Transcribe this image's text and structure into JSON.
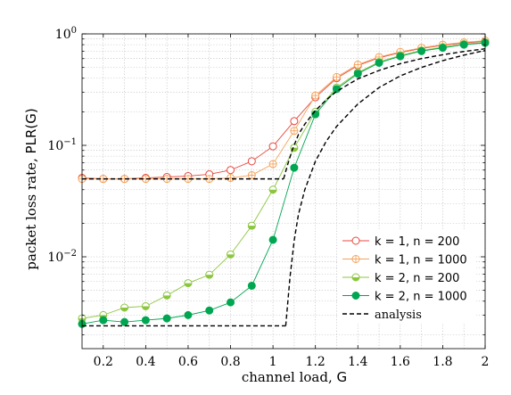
{
  "chart_data": {
    "type": "line",
    "title": "",
    "xlabel_text": "channel load,",
    "xlabel_symbol": "G",
    "ylabel_text": "packet loss rate,",
    "ylabel_symbol": "PLR(G)",
    "xlim": [
      0.1,
      2.0
    ],
    "ylim": [
      0.0015,
      1.0
    ],
    "yscale": "log",
    "grid": true,
    "legend_position": "lower-right",
    "x_ticks": [
      0.2,
      0.4,
      0.6,
      0.8,
      1.0,
      1.2,
      1.4,
      1.6,
      1.8,
      2.0
    ],
    "x_tick_labels": [
      "0.2",
      "0.4",
      "0.6",
      "0.8",
      "1",
      "1.2",
      "1.4",
      "1.6",
      "1.8",
      "2"
    ],
    "y_ticks": [
      {
        "value": 0.01,
        "base": "10",
        "exp": "−2"
      },
      {
        "value": 0.1,
        "base": "10",
        "exp": "−1"
      },
      {
        "value": 1.0,
        "base": "10",
        "exp": "0"
      }
    ],
    "x": [
      0.1,
      0.2,
      0.3,
      0.4,
      0.5,
      0.6,
      0.7,
      0.8,
      0.9,
      1.0,
      1.1,
      1.2,
      1.3,
      1.4,
      1.5,
      1.6,
      1.7,
      1.8,
      1.9,
      2.0
    ],
    "series": [
      {
        "name": "k = 1, n = 200",
        "color": "#e8473d",
        "marker": "circle-open",
        "values": [
          0.051,
          0.05,
          0.05,
          0.051,
          0.052,
          0.053,
          0.055,
          0.06,
          0.072,
          0.098,
          0.165,
          0.27,
          0.4,
          0.52,
          0.61,
          0.68,
          0.74,
          0.79,
          0.83,
          0.86
        ]
      },
      {
        "name": "k = 1, n = 1000",
        "color": "#f5a35c",
        "marker": "circle-plus",
        "values": [
          0.05,
          0.05,
          0.05,
          0.05,
          0.05,
          0.05,
          0.05,
          0.051,
          0.054,
          0.068,
          0.135,
          0.28,
          0.41,
          0.53,
          0.62,
          0.69,
          0.75,
          0.8,
          0.84,
          0.87
        ]
      },
      {
        "name": "k = 2, n = 200",
        "color": "#8cc63f",
        "marker": "circle-half",
        "values": [
          0.0028,
          0.003,
          0.0035,
          0.0036,
          0.0045,
          0.0058,
          0.0069,
          0.0105,
          0.019,
          0.04,
          0.095,
          0.2,
          0.33,
          0.45,
          0.56,
          0.64,
          0.71,
          0.76,
          0.81,
          0.84
        ]
      },
      {
        "name": "k = 2, n = 1000",
        "color": "#00a651",
        "marker": "circle-filled",
        "values": [
          0.0025,
          0.0027,
          0.0026,
          0.0027,
          0.0028,
          0.003,
          0.0033,
          0.0039,
          0.0055,
          0.0142,
          0.063,
          0.19,
          0.32,
          0.44,
          0.55,
          0.63,
          0.7,
          0.75,
          0.8,
          0.83
        ]
      },
      {
        "name": "analysis",
        "color": "#000000",
        "marker": "none",
        "dashed": true,
        "segments": [
          {
            "x": [
              0.1,
              1.05
            ],
            "values": [
              0.05,
              0.05
            ]
          },
          {
            "x": [
              1.05,
              1.07,
              1.09,
              1.12,
              1.15,
              1.2,
              1.25,
              1.3,
              1.4,
              1.5,
              1.6,
              1.7,
              1.8,
              1.9,
              2.0
            ],
            "values": [
              0.05,
              0.068,
              0.09,
              0.125,
              0.155,
              0.205,
              0.255,
              0.305,
              0.395,
              0.47,
              0.54,
              0.6,
              0.65,
              0.695,
              0.735
            ]
          },
          {
            "x": [
              0.1,
              1.06
            ],
            "values": [
              0.0024,
              0.0024
            ]
          },
          {
            "x": [
              1.06,
              1.08,
              1.1,
              1.12,
              1.15,
              1.2,
              1.25,
              1.3,
              1.4,
              1.5,
              1.6,
              1.7,
              1.8,
              1.9,
              2.0
            ],
            "values": [
              0.0024,
              0.0065,
              0.014,
              0.024,
              0.04,
              0.072,
              0.108,
              0.148,
              0.235,
              0.33,
              0.42,
              0.5,
              0.575,
              0.645,
              0.71
            ]
          }
        ]
      }
    ]
  }
}
